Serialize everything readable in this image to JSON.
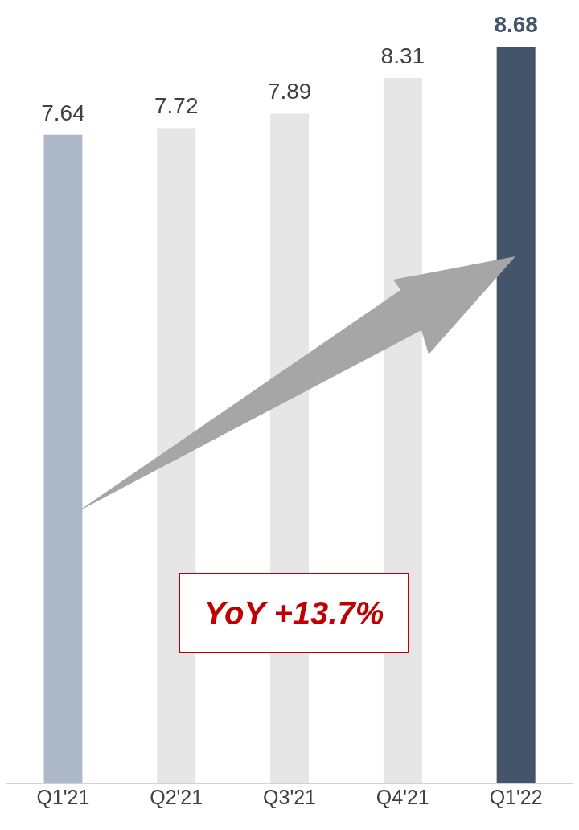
{
  "chart_data": {
    "type": "bar",
    "categories": [
      "Q1'21",
      "Q2'21",
      "Q3'21",
      "Q4'21",
      "Q1'22"
    ],
    "values": [
      7.64,
      7.72,
      7.89,
      8.31,
      8.68
    ],
    "colors": [
      "#adb8c9",
      "#e6e6e6",
      "#e6e6e6",
      "#e6e6e6",
      "#44546a"
    ],
    "data_labels": true,
    "annotations": [
      "YoY +13.7%"
    ]
  }
}
